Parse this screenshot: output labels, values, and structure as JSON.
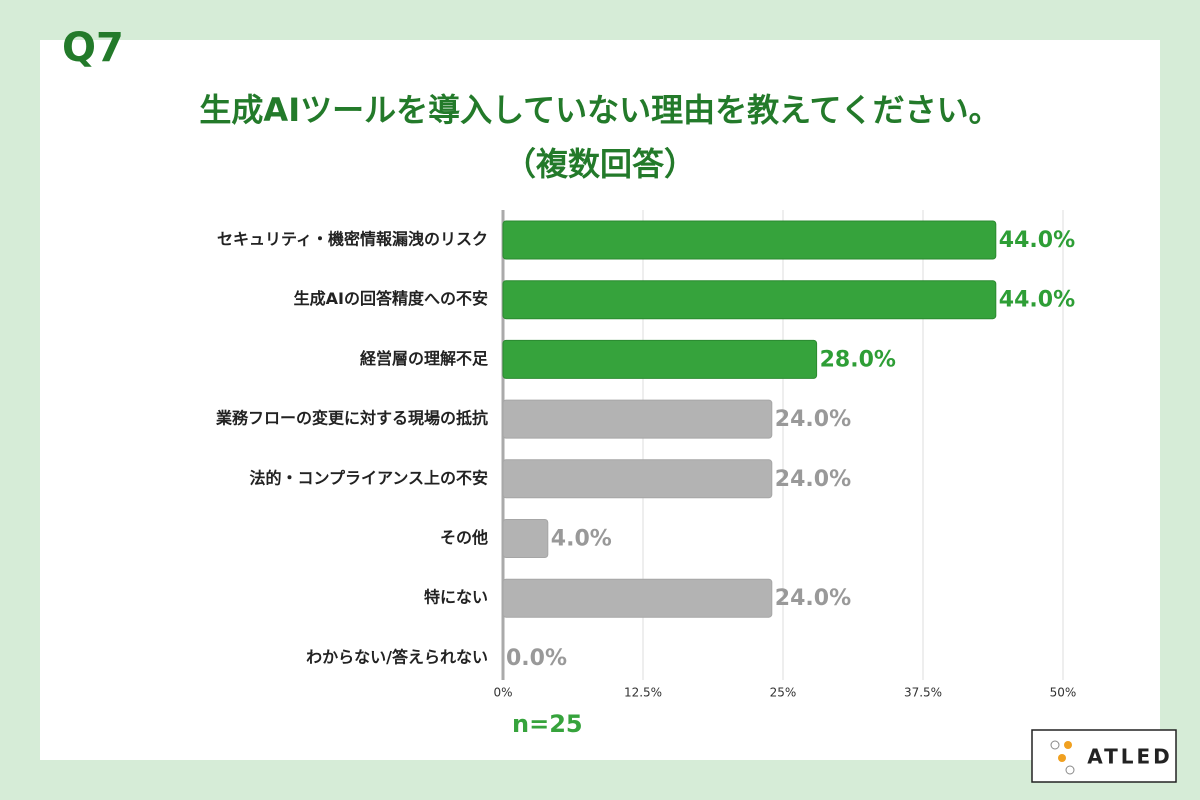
{
  "chart_data": {
    "type": "hbar",
    "label": "Q7",
    "title": "生成AIツールを導入していない理由を教えてください。",
    "subtitle": "（複数回答）",
    "categories": [
      "セキュリティ・機密情報漏洩のリスク",
      "生成AIの回答精度への不安",
      "経営層の理解不足",
      "業務フローの変更に対する現場の抵抗",
      "法的・コンプライアンス上の不安",
      "その他",
      "特にない",
      "わからない/答えられない"
    ],
    "values": [
      44,
      44,
      28,
      24,
      24,
      4,
      24,
      0
    ],
    "value_labels": [
      "44.0%",
      "44.0%",
      "28.0%",
      "24.0%",
      "24.0%",
      "4.0%",
      "24.0%",
      "0.0%"
    ],
    "colors": [
      "#36a33c",
      "#36a33c",
      "#36a33c",
      "#b3b3b3",
      "#b3b3b3",
      "#b3b3b3",
      "#b3b3b3",
      "#b3b3b3"
    ],
    "xlim": [
      0,
      50
    ],
    "xticks": [
      {
        "value": 0,
        "label": "0%"
      },
      {
        "value": 12.5,
        "label": "12.5%"
      },
      {
        "value": 25,
        "label": "25%"
      },
      {
        "value": 37.5,
        "label": "37.5%"
      },
      {
        "value": 50,
        "label": "50%"
      }
    ],
    "grid": true,
    "note": "n=25",
    "logo": "ATLED"
  }
}
